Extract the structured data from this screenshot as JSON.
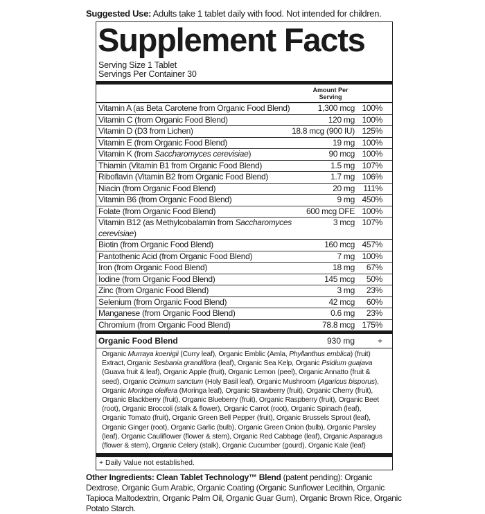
{
  "suggested_use": {
    "label": "Suggested Use:",
    "text": " Adults take 1 tablet daily with food. Not intended for children."
  },
  "title": "Supplement Facts",
  "serving_size": "Serving Size 1 Tablet",
  "servings_per_container": "Servings Per Container 30",
  "amount_header": "Amount Per Serving",
  "nutrients": [
    {
      "name": [
        {
          "t": "Vitamin A (as Beta Carotene from Organic Food Blend)"
        }
      ],
      "amount": "1,300 mcg",
      "dv": "100%"
    },
    {
      "name": [
        {
          "t": "Vitamin C (from Organic Food Blend)"
        }
      ],
      "amount": "120 mg",
      "dv": "100%"
    },
    {
      "name": [
        {
          "t": "Vitamin D (D3 from Lichen)"
        }
      ],
      "amount": "18.8 mcg (900 IU)",
      "dv": "125%"
    },
    {
      "name": [
        {
          "t": "Vitamin E (from Organic Food Blend)"
        }
      ],
      "amount": "19 mg",
      "dv": "100%"
    },
    {
      "name": [
        {
          "t": "Vitamin K (from "
        },
        {
          "t": "Saccharomyces cerevisiae",
          "i": true
        },
        {
          "t": ")"
        }
      ],
      "amount": "90 mcg",
      "dv": "100%"
    },
    {
      "name": [
        {
          "t": "Thiamin (Vitamin B1 from Organic Food Blend)"
        }
      ],
      "amount": "1.5 mg",
      "dv": "107%"
    },
    {
      "name": [
        {
          "t": "Riboflavin (Vitamin B2 from Organic Food Blend)"
        }
      ],
      "amount": "1.7 mg",
      "dv": "106%"
    },
    {
      "name": [
        {
          "t": "Niacin (from Organic Food Blend)"
        }
      ],
      "amount": "20 mg",
      "dv": "111%"
    },
    {
      "name": [
        {
          "t": "Vitamin B6 (from Organic Food Blend)"
        }
      ],
      "amount": "9 mg",
      "dv": "450%"
    },
    {
      "name": [
        {
          "t": "Folate (from Organic Food Blend)"
        }
      ],
      "amount": "600 mcg DFE",
      "dv": "100%"
    },
    {
      "name": [
        {
          "t": "Vitamin B12 (as Methylcobalamin from "
        },
        {
          "t": "Saccharomyces cerevisiae",
          "i": true
        },
        {
          "t": ")"
        }
      ],
      "amount": "3 mcg",
      "dv": "107%"
    },
    {
      "name": [
        {
          "t": "Biotin (from Organic Food Blend)"
        }
      ],
      "amount": "160 mcg",
      "dv": "457%"
    },
    {
      "name": [
        {
          "t": "Pantothenic Acid (from Organic Food Blend)"
        }
      ],
      "amount": "7 mg",
      "dv": "100%"
    },
    {
      "name": [
        {
          "t": "Iron (from Organic Food Blend)"
        }
      ],
      "amount": "18 mg",
      "dv": "67%"
    },
    {
      "name": [
        {
          "t": "Iodine (from Organic Food Blend)"
        }
      ],
      "amount": "145 mcg",
      "dv": "50%"
    },
    {
      "name": [
        {
          "t": "Zinc (from Organic Food Blend)"
        }
      ],
      "amount": "3 mg",
      "dv": "23%"
    },
    {
      "name": [
        {
          "t": "Selenium (from Organic Food Blend)"
        }
      ],
      "amount": "42 mcg",
      "dv": "60%"
    },
    {
      "name": [
        {
          "t": "Manganese (from Organic Food Blend)"
        }
      ],
      "amount": "0.6 mg",
      "dv": "23%"
    },
    {
      "name": [
        {
          "t": "Chromium (from Organic Food Blend)"
        }
      ],
      "amount": "78.8 mcg",
      "dv": "175%"
    }
  ],
  "blend": {
    "name": "Organic Food Blend",
    "amount": "930 mg",
    "dv": "+",
    "ingredients": [
      {
        "t": "Organic "
      },
      {
        "t": "Murraya koenigii",
        "i": true
      },
      {
        "t": " (Curry leaf), Organic Emblic (Amla, "
      },
      {
        "t": "Phyllanthus emblica",
        "i": true
      },
      {
        "t": ") (fruit) Extract, Organic "
      },
      {
        "t": "Sesbania grandiflora",
        "i": true
      },
      {
        "t": " (leaf), Organic Sea Kelp, Organic "
      },
      {
        "t": "Psidium guajava",
        "i": true
      },
      {
        "t": " (Guava fruit & leaf), Organic Apple (fruit), Organic Lemon (peel), Organic Annatto (fruit & seed), Organic "
      },
      {
        "t": "Ocimum sanctum",
        "i": true
      },
      {
        "t": " (Holy Basil leaf), Organic Mushroom ("
      },
      {
        "t": "Agaricus bisporus",
        "i": true
      },
      {
        "t": "), Organic "
      },
      {
        "t": "Moringa oleifera",
        "i": true
      },
      {
        "t": " (Moringa leaf), Organic Strawberry (fruit), Organic Cherry (fruit), Organic Blackberry (fruit), Organic Blueberry (fruit), Organic Raspberry (fruit), Organic Beet (root), Organic Broccoli (stalk & flower), Organic Carrot (root), Organic Spinach (leaf), Organic Tomato (fruit), Organic Green Bell Pepper (fruit), Organic Brussels Sprout (leaf), Organic Ginger (root), Organic Garlic (bulb), Organic Green Onion (bulb), Organic Parsley (leaf), Organic Cauliflower (flower & stem), Organic Red Cabbage (leaf), Organic Asparagus (flower & stem), Organic Celery (stalk), Organic Cucumber (gourd), Organic Kale (leaf)"
      }
    ]
  },
  "footnote": "+ Daily Value not established.",
  "other_ingredients": {
    "label": "Other Ingredients: Clean Tablet Technology™ Blend",
    "text": " (patent pending): Organic Dextrose, Organic Gum Arabic, Organic Coating (Organic Sunflower Lecithin, Organic Tapioca Maltodextrin, Organic Palm Oil, Organic Guar Gum), Organic Brown Rice, Organic Potato Starch."
  }
}
